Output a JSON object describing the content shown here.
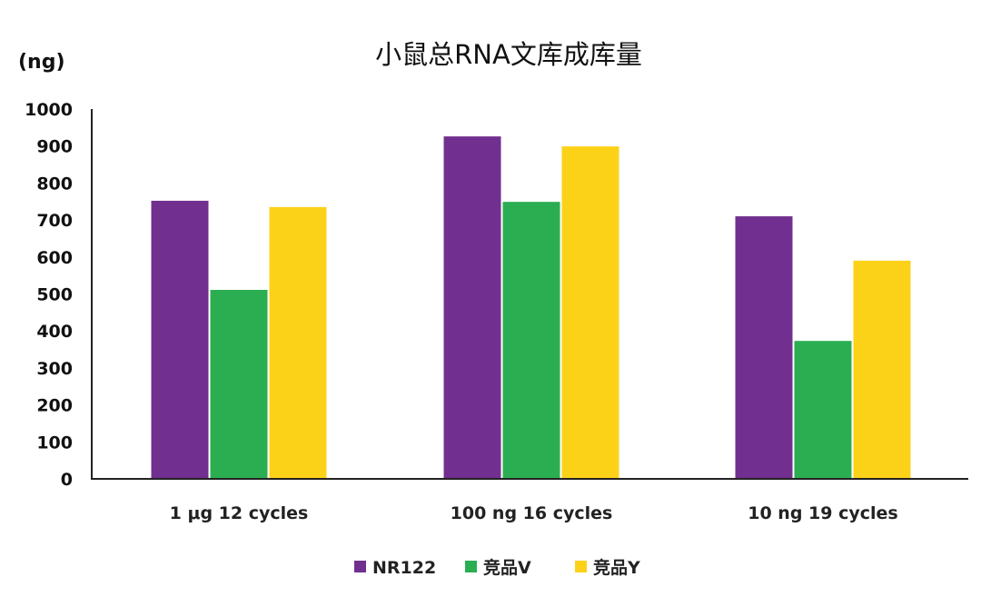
{
  "chart_data": {
    "type": "bar",
    "title": "小鼠总RNA文库成库量",
    "ylabel": "(ng)",
    "xlabel": "",
    "categories": [
      "1 μg 12 cycles",
      "100 ng 16 cycles",
      "10 ng 19 cycles"
    ],
    "series": [
      {
        "name": "NR122",
        "color": "#71308f",
        "values": [
          752,
          926,
          710
        ]
      },
      {
        "name": "竞品V",
        "color": "#2bae52",
        "values": [
          511,
          749,
          373
        ]
      },
      {
        "name": "竞品Y",
        "color": "#fcd219",
        "values": [
          735,
          899,
          590
        ]
      }
    ],
    "ylim": [
      0,
      1000
    ],
    "yticks": [
      0,
      100,
      200,
      300,
      400,
      500,
      600,
      700,
      800,
      900,
      1000
    ],
    "grid": false,
    "legend": "bottom"
  }
}
